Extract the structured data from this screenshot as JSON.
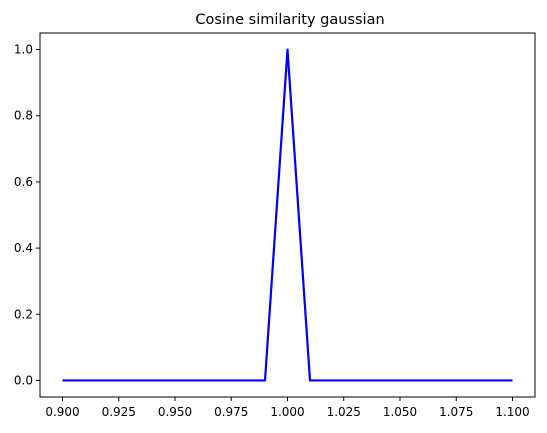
{
  "chart_data": {
    "type": "line",
    "title": "Cosine similarity gaussian",
    "xlabel": "",
    "ylabel": "",
    "xlim": [
      0.89,
      1.11
    ],
    "ylim": [
      -0.05,
      1.05
    ],
    "grid": false,
    "x_ticks": [
      "0.900",
      "0.925",
      "0.950",
      "0.975",
      "1.000",
      "1.025",
      "1.050",
      "1.075",
      "1.100"
    ],
    "y_ticks": [
      "0.0",
      "0.2",
      "0.4",
      "0.6",
      "0.8",
      "1.0"
    ],
    "series": [
      {
        "color": "#0000ff",
        "x": [
          0.9,
          0.99,
          1.0,
          1.01,
          1.1
        ],
        "y": [
          0.0,
          0.0,
          1.0,
          0.0,
          0.0
        ]
      }
    ]
  }
}
